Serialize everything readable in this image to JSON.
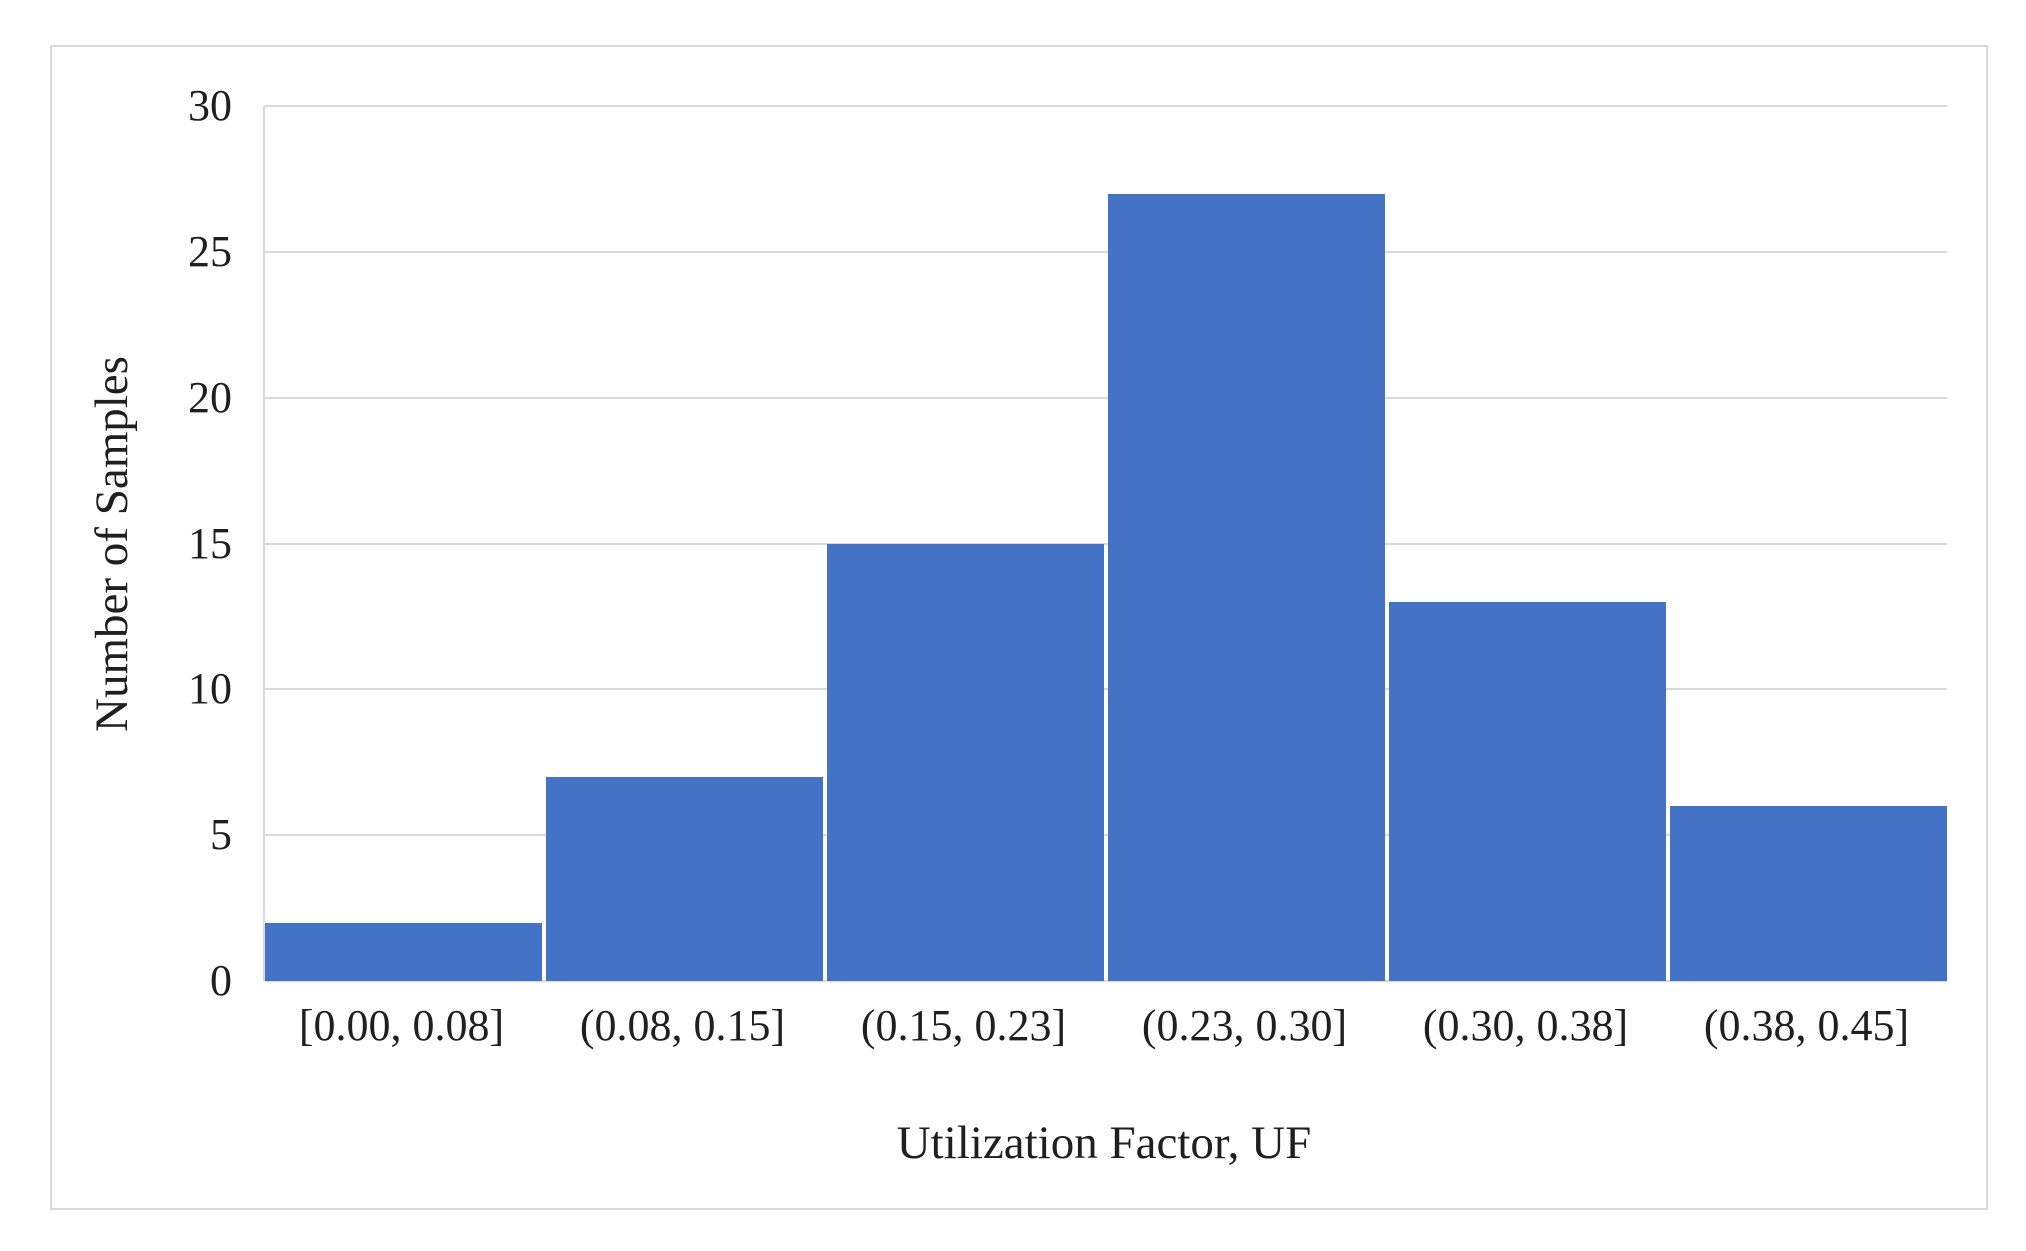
{
  "chart_data": {
    "type": "bar",
    "title": "",
    "categories": [
      "[0.00, 0.08]",
      "(0.08, 0.15]",
      "(0.15, 0.23]",
      "(0.23, 0.30]",
      "(0.30, 0.38]",
      "(0.38, 0.45]"
    ],
    "values": [
      2,
      7,
      15,
      27,
      13,
      6
    ],
    "xlabel": "Utilization Factor, UF",
    "ylabel": "Number of Samples",
    "ylim": [
      0,
      30
    ],
    "y_ticks": [
      0,
      5,
      10,
      15,
      20,
      25,
      30
    ],
    "grid": "horizontal-on",
    "legend": "none",
    "colors": {
      "bar": "#4472C4",
      "gridline": "#D9D9D9",
      "axis_line": "#D9D9D9",
      "figure_border": "#D9D9D9",
      "text": "#1F1F1F",
      "background": "#FFFFFF"
    }
  }
}
